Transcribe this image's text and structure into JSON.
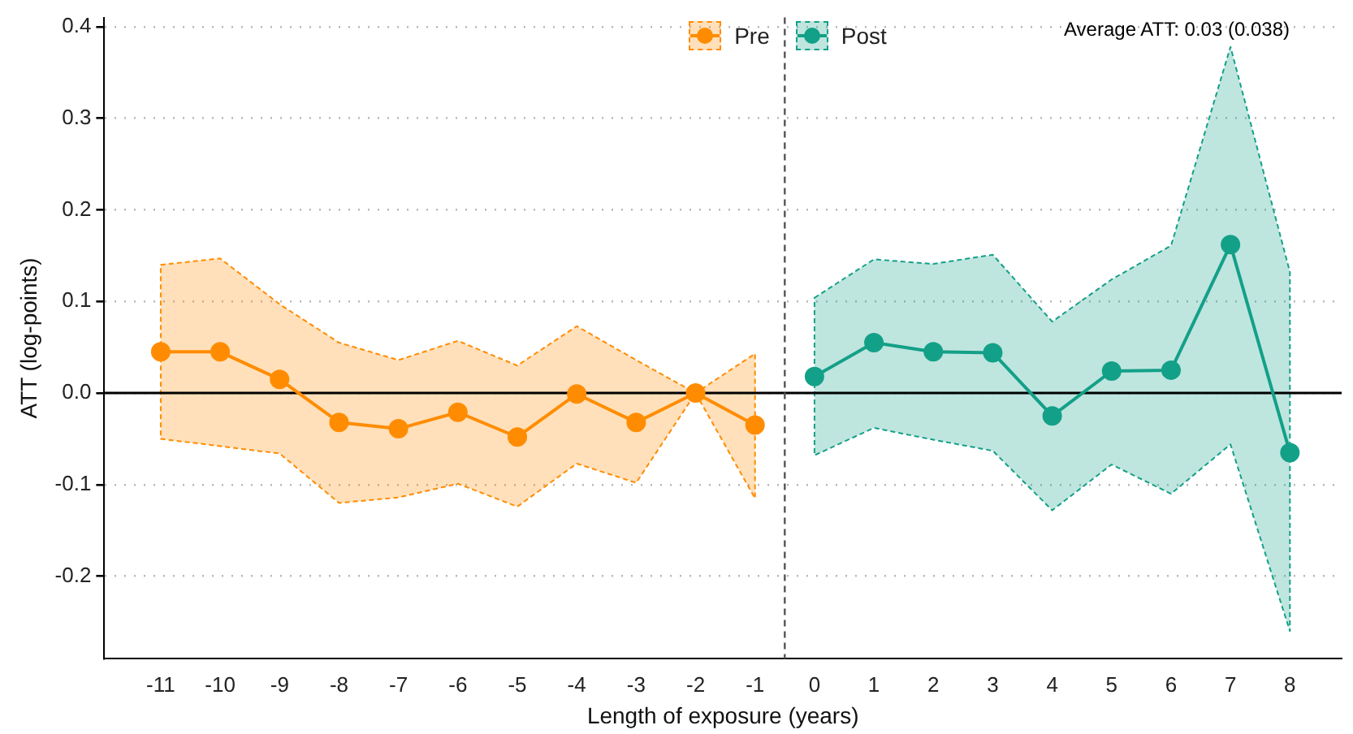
{
  "chart_data": {
    "type": "line",
    "xlabel": "Length of exposure (years)",
    "ylabel": "ATT (log-points)",
    "xlim": [
      -11.95,
      8.87
    ],
    "xticks": [
      -11,
      -10,
      -9,
      -8,
      -7,
      -6,
      -5,
      -4,
      -3,
      -2,
      -1,
      0,
      1,
      2,
      3,
      4,
      5,
      6,
      7,
      8
    ],
    "ylim": [
      -0.29,
      0.41
    ],
    "yticks": [
      -0.2,
      -0.1,
      {
        "value": 0,
        "label": "0.0"
      },
      0.1,
      0.2,
      0.3,
      0.4
    ],
    "grid": "y",
    "legend": "top",
    "marker": "circle",
    "line_style": "solid",
    "series": [
      {
        "name": "Pre",
        "color": "#ff8c00",
        "x": [
          -11,
          -10,
          -9,
          -8,
          -7,
          -6,
          -5,
          -4,
          -3,
          -2,
          -1
        ],
        "values": [
          0.045,
          0.045,
          0.015,
          -0.032,
          -0.039,
          -0.021,
          -0.048,
          -0.001,
          -0.032,
          0,
          -0.035
        ],
        "lower": [
          -0.05,
          -0.058,
          -0.066,
          -0.12,
          -0.114,
          -0.099,
          -0.124,
          -0.077,
          -0.098,
          0,
          -0.115
        ],
        "upper": [
          0.14,
          0.147,
          0.097,
          0.055,
          0.036,
          0.057,
          0.03,
          0.073,
          0.036,
          0,
          0.043
        ]
      },
      {
        "name": "Post",
        "color": "#13a088",
        "x": [
          0,
          1,
          2,
          3,
          4,
          5,
          6,
          7,
          8
        ],
        "values": [
          0.018,
          0.055,
          0.045,
          0.044,
          -0.025,
          0.024,
          0.025,
          0.162,
          -0.065
        ],
        "lower": [
          -0.068,
          -0.038,
          -0.051,
          -0.063,
          -0.128,
          -0.078,
          -0.11,
          -0.056,
          -0.26
        ],
        "upper": [
          0.104,
          0.146,
          0.141,
          0.151,
          0.078,
          0.124,
          0.161,
          0.378,
          0.132
        ]
      }
    ],
    "ref_lines": [
      {
        "axis": "y",
        "value": 0,
        "color": "#000000",
        "line_style": "solid"
      },
      {
        "axis": "x",
        "value": -0.5,
        "color": "#555555",
        "line_style": "dashed"
      }
    ],
    "annotations": [
      "Average ATT: 0.03 (0.038)"
    ]
  }
}
